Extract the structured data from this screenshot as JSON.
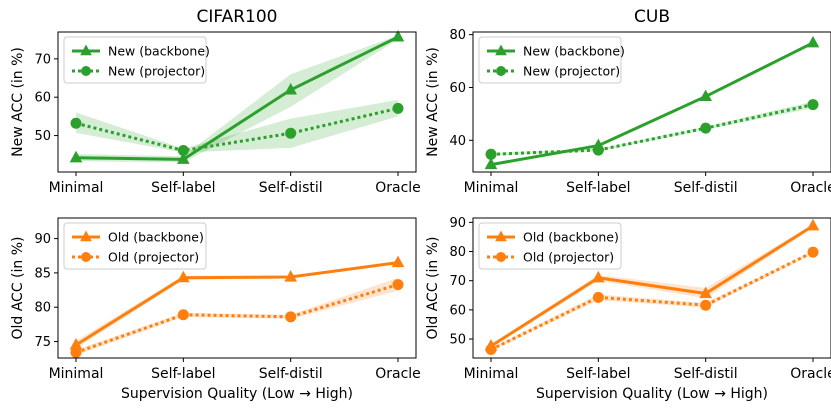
{
  "xlabel": "Supervision Quality (Low → High)",
  "colors": {
    "green": "#2ca02c",
    "orange": "#ff7f0e"
  },
  "chart_data": [
    {
      "id": "cifar-new",
      "type": "line",
      "title": "CIFAR100",
      "xlabel": "",
      "ylabel": "New ACC (in %)",
      "color": "green",
      "categories": [
        "Minimal",
        "Self-label",
        "Self-distil",
        "Oracle"
      ],
      "ylim": [
        40.5,
        77
      ],
      "yticks": [
        50,
        60,
        70
      ],
      "legend": "top-left",
      "series": [
        {
          "name": "New (backbone)",
          "marker": "triangle",
          "style": "solid",
          "values": [
            44.2,
            43.8,
            61.9,
            75.7
          ],
          "lower": [
            43.3,
            43.0,
            57.5,
            75.1
          ],
          "upper": [
            45.2,
            44.6,
            66.0,
            76.1
          ]
        },
        {
          "name": "New (projector)",
          "marker": "circle",
          "style": "dotted",
          "values": [
            53.2,
            46.1,
            50.6,
            57.1
          ],
          "lower": [
            50.7,
            45.6,
            46.8,
            55.0
          ],
          "upper": [
            56.0,
            46.6,
            54.4,
            59.3
          ]
        }
      ]
    },
    {
      "id": "cub-new",
      "type": "line",
      "title": "CUB",
      "xlabel": "",
      "ylabel": "New ACC (in %)",
      "color": "green",
      "categories": [
        "Minimal",
        "Self-label",
        "Self-distil",
        "Oracle"
      ],
      "ylim": [
        28,
        81
      ],
      "yticks": [
        40,
        60,
        80
      ],
      "legend": "top-left",
      "series": [
        {
          "name": "New (backbone)",
          "marker": "triangle",
          "style": "solid",
          "values": [
            30.8,
            38.0,
            56.6,
            76.9
          ],
          "lower": [
            30.4,
            37.5,
            56.1,
            76.4
          ],
          "upper": [
            31.3,
            38.5,
            57.1,
            77.4
          ]
        },
        {
          "name": "New (projector)",
          "marker": "circle",
          "style": "dotted",
          "values": [
            34.7,
            36.3,
            44.6,
            53.5
          ],
          "lower": [
            34.2,
            35.8,
            44.0,
            52.2
          ],
          "upper": [
            35.2,
            36.8,
            45.2,
            54.7
          ]
        }
      ]
    },
    {
      "id": "cifar-old",
      "type": "line",
      "title": "",
      "xlabel": "Supervision Quality (Low → High)",
      "ylabel": "Old ACC (in %)",
      "color": "orange",
      "categories": [
        "Minimal",
        "Self-label",
        "Self-distil",
        "Oracle"
      ],
      "ylim": [
        72.6,
        93
      ],
      "yticks": [
        75,
        80,
        85,
        90
      ],
      "legend": "top-left",
      "series": [
        {
          "name": "Old (backbone)",
          "marker": "triangle",
          "style": "solid",
          "values": [
            74.5,
            84.3,
            84.4,
            86.5
          ],
          "lower": [
            74.0,
            84.0,
            84.2,
            86.3
          ],
          "upper": [
            75.1,
            84.6,
            84.6,
            86.7
          ]
        },
        {
          "name": "Old (projector)",
          "marker": "circle",
          "style": "dotted",
          "values": [
            73.4,
            78.9,
            78.6,
            83.3
          ],
          "lower": [
            73.0,
            78.6,
            78.3,
            82.4
          ],
          "upper": [
            73.8,
            79.2,
            78.9,
            84.3
          ]
        }
      ]
    },
    {
      "id": "cub-old",
      "type": "line",
      "title": "",
      "xlabel": "Supervision Quality (Low → High)",
      "ylabel": "Old ACC (in %)",
      "color": "orange",
      "categories": [
        "Minimal",
        "Self-label",
        "Self-distil",
        "Oracle"
      ],
      "ylim": [
        43.5,
        91.5
      ],
      "yticks": [
        50,
        60,
        70,
        80,
        90
      ],
      "legend": "top-left",
      "series": [
        {
          "name": "Old (backbone)",
          "marker": "triangle",
          "style": "solid",
          "values": [
            47.6,
            71.0,
            65.6,
            88.8
          ],
          "lower": [
            47.0,
            70.0,
            64.0,
            88.2
          ],
          "upper": [
            48.2,
            72.0,
            67.5,
            89.4
          ]
        },
        {
          "name": "Old (projector)",
          "marker": "circle",
          "style": "dotted",
          "values": [
            46.4,
            64.3,
            61.6,
            79.8
          ],
          "lower": [
            45.9,
            63.3,
            60.8,
            79.3
          ],
          "upper": [
            46.9,
            65.3,
            62.4,
            80.3
          ]
        }
      ]
    }
  ]
}
